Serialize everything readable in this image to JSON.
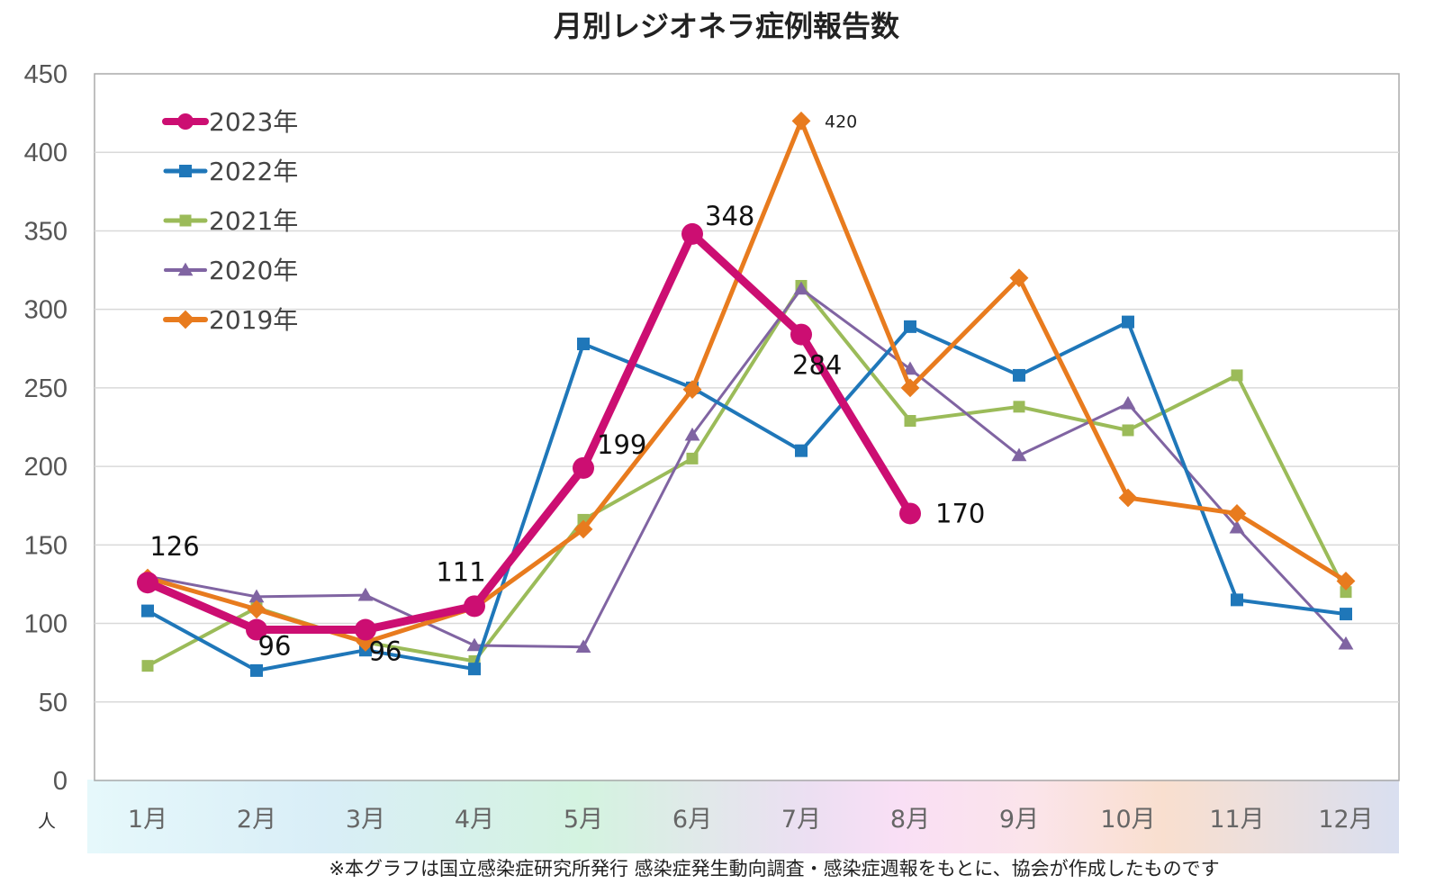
{
  "chart_data": {
    "type": "line",
    "title": "月別レジオネラ症例報告数",
    "unit_label": "人",
    "ylim": [
      0,
      450
    ],
    "yticks": [
      0,
      50,
      100,
      150,
      200,
      250,
      300,
      350,
      400,
      450
    ],
    "categories": [
      "1月",
      "2月",
      "3月",
      "4月",
      "5月",
      "6月",
      "7月",
      "8月",
      "9月",
      "10月",
      "11月",
      "12月"
    ],
    "grid": "horizontal",
    "legend_position": "top-left inside",
    "series": [
      {
        "name": "2023年",
        "color": "#cc0e72",
        "marker": "circle",
        "values": [
          126,
          96,
          96,
          111,
          199,
          348,
          284,
          170,
          null,
          null,
          null,
          null
        ],
        "data_labels": [
          "126",
          "96",
          "96",
          "111",
          "199",
          "348",
          "284",
          "170",
          null,
          null,
          null,
          null
        ]
      },
      {
        "name": "2022年",
        "color": "#1f77b9",
        "marker": "square",
        "values": [
          108,
          70,
          83,
          71,
          278,
          250,
          210,
          289,
          258,
          292,
          115,
          106
        ]
      },
      {
        "name": "2021年",
        "color": "#9bbb59",
        "marker": "square",
        "values": [
          73,
          110,
          88,
          76,
          166,
          205,
          315,
          229,
          238,
          223,
          258,
          120
        ]
      },
      {
        "name": "2020年",
        "color": "#8064a2",
        "marker": "triangle",
        "values": [
          130,
          117,
          118,
          86,
          85,
          220,
          313,
          262,
          207,
          240,
          161,
          87
        ]
      },
      {
        "name": "2019年",
        "color": "#e87b1e",
        "marker": "diamond",
        "values": [
          129,
          109,
          88,
          110,
          160,
          249,
          420,
          250,
          320,
          180,
          170,
          127
        ],
        "data_labels": [
          null,
          null,
          null,
          null,
          null,
          null,
          "420",
          null,
          null,
          null,
          null,
          null
        ]
      }
    ]
  },
  "footnote": "※本グラフは国立感染症研究所発行 感染症発生動向調査・感染症週報をもとに、協会が作成したものです"
}
